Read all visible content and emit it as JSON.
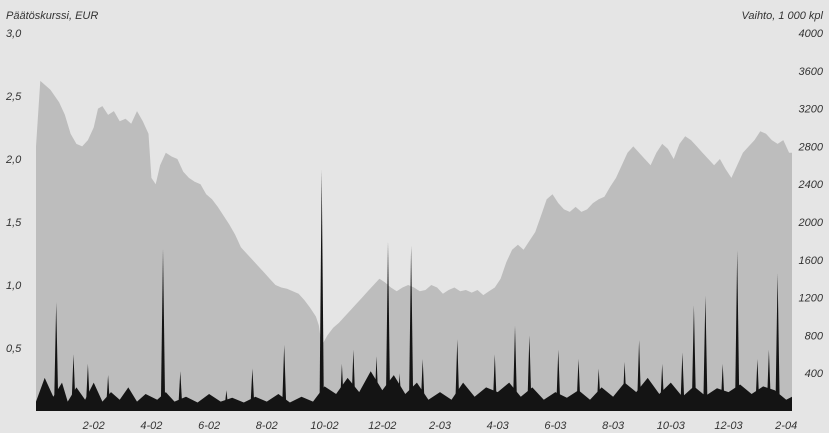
{
  "chart_data": {
    "type": "area",
    "ylabel_left": "Päätöskurssi, EUR",
    "ylabel_right": "Vaihto, 1 000 kpl",
    "left_axis": {
      "min": 0,
      "max": 3.0,
      "ticks": [
        "0,5",
        "1,0",
        "1,5",
        "2,0",
        "2,5",
        "3,0"
      ],
      "tick_values": [
        0.5,
        1.0,
        1.5,
        2.0,
        2.5,
        3.0
      ]
    },
    "right_axis": {
      "min": 0,
      "max": 4000,
      "ticks": [
        "400",
        "800",
        "1200",
        "1600",
        "2000",
        "2400",
        "2800",
        "3200",
        "3600",
        "4000"
      ],
      "tick_values": [
        400,
        800,
        1200,
        1600,
        2000,
        2400,
        2800,
        3200,
        3600,
        4000
      ]
    },
    "x_ticks": [
      "2-02",
      "4-02",
      "6-02",
      "8-02",
      "10-02",
      "12-02",
      "2-03",
      "4-03",
      "6-03",
      "8-03",
      "10-03",
      "12-03",
      "2-04"
    ],
    "x_tick_months": [
      2,
      4,
      6,
      8,
      10,
      12,
      14,
      16,
      18,
      20,
      22,
      24,
      26
    ],
    "x_range_months": [
      0.0,
      26.2
    ],
    "grid": false,
    "colors": {
      "price_area": "#bdbdbd",
      "volume_area": "#141414",
      "background": "#e5e5e5",
      "text": "#333333"
    },
    "series": [
      {
        "name": "Päätöskurssi, EUR",
        "axis": "left",
        "kind": "area",
        "points": [
          [
            0.0,
            2.1
          ],
          [
            0.15,
            2.62
          ],
          [
            0.5,
            2.55
          ],
          [
            0.8,
            2.45
          ],
          [
            1.0,
            2.35
          ],
          [
            1.2,
            2.2
          ],
          [
            1.4,
            2.12
          ],
          [
            1.6,
            2.1
          ],
          [
            1.8,
            2.15
          ],
          [
            2.0,
            2.25
          ],
          [
            2.15,
            2.4
          ],
          [
            2.3,
            2.42
          ],
          [
            2.5,
            2.35
          ],
          [
            2.7,
            2.38
          ],
          [
            2.9,
            2.3
          ],
          [
            3.1,
            2.32
          ],
          [
            3.3,
            2.28
          ],
          [
            3.5,
            2.38
          ],
          [
            3.7,
            2.3
          ],
          [
            3.9,
            2.2
          ],
          [
            4.0,
            1.85
          ],
          [
            4.15,
            1.8
          ],
          [
            4.3,
            1.95
          ],
          [
            4.5,
            2.05
          ],
          [
            4.7,
            2.02
          ],
          [
            4.9,
            2.0
          ],
          [
            5.1,
            1.9
          ],
          [
            5.3,
            1.85
          ],
          [
            5.5,
            1.82
          ],
          [
            5.7,
            1.8
          ],
          [
            5.9,
            1.72
          ],
          [
            6.1,
            1.68
          ],
          [
            6.3,
            1.62
          ],
          [
            6.5,
            1.55
          ],
          [
            6.7,
            1.48
          ],
          [
            6.9,
            1.4
          ],
          [
            7.1,
            1.3
          ],
          [
            7.3,
            1.25
          ],
          [
            7.5,
            1.2
          ],
          [
            7.7,
            1.15
          ],
          [
            7.9,
            1.1
          ],
          [
            8.1,
            1.05
          ],
          [
            8.3,
            1.0
          ],
          [
            8.5,
            0.98
          ],
          [
            8.7,
            0.97
          ],
          [
            8.9,
            0.95
          ],
          [
            9.1,
            0.93
          ],
          [
            9.3,
            0.88
          ],
          [
            9.5,
            0.82
          ],
          [
            9.7,
            0.75
          ],
          [
            9.8,
            0.68
          ],
          [
            9.9,
            0.52
          ],
          [
            10.1,
            0.6
          ],
          [
            10.3,
            0.66
          ],
          [
            10.5,
            0.7
          ],
          [
            10.7,
            0.75
          ],
          [
            10.9,
            0.8
          ],
          [
            11.1,
            0.85
          ],
          [
            11.3,
            0.9
          ],
          [
            11.5,
            0.95
          ],
          [
            11.7,
            1.0
          ],
          [
            11.9,
            1.05
          ],
          [
            12.1,
            1.02
          ],
          [
            12.3,
            0.98
          ],
          [
            12.5,
            0.95
          ],
          [
            12.7,
            0.98
          ],
          [
            12.9,
            1.0
          ],
          [
            13.1,
            0.98
          ],
          [
            13.3,
            0.95
          ],
          [
            13.5,
            0.96
          ],
          [
            13.7,
            1.0
          ],
          [
            13.9,
            0.98
          ],
          [
            14.1,
            0.93
          ],
          [
            14.3,
            0.96
          ],
          [
            14.5,
            0.98
          ],
          [
            14.7,
            0.95
          ],
          [
            14.9,
            0.96
          ],
          [
            15.1,
            0.94
          ],
          [
            15.3,
            0.96
          ],
          [
            15.5,
            0.92
          ],
          [
            15.7,
            0.95
          ],
          [
            15.9,
            0.98
          ],
          [
            16.1,
            1.05
          ],
          [
            16.3,
            1.18
          ],
          [
            16.5,
            1.28
          ],
          [
            16.7,
            1.32
          ],
          [
            16.9,
            1.28
          ],
          [
            17.1,
            1.35
          ],
          [
            17.3,
            1.42
          ],
          [
            17.5,
            1.55
          ],
          [
            17.7,
            1.68
          ],
          [
            17.9,
            1.72
          ],
          [
            18.1,
            1.65
          ],
          [
            18.3,
            1.6
          ],
          [
            18.5,
            1.58
          ],
          [
            18.7,
            1.62
          ],
          [
            18.9,
            1.58
          ],
          [
            19.1,
            1.6
          ],
          [
            19.3,
            1.65
          ],
          [
            19.5,
            1.68
          ],
          [
            19.7,
            1.7
          ],
          [
            19.9,
            1.78
          ],
          [
            20.1,
            1.85
          ],
          [
            20.3,
            1.95
          ],
          [
            20.5,
            2.05
          ],
          [
            20.7,
            2.1
          ],
          [
            20.9,
            2.05
          ],
          [
            21.1,
            2.0
          ],
          [
            21.3,
            1.95
          ],
          [
            21.5,
            2.05
          ],
          [
            21.7,
            2.12
          ],
          [
            21.9,
            2.08
          ],
          [
            22.1,
            2.0
          ],
          [
            22.3,
            2.12
          ],
          [
            22.5,
            2.18
          ],
          [
            22.7,
            2.15
          ],
          [
            22.9,
            2.1
          ],
          [
            23.1,
            2.05
          ],
          [
            23.3,
            2.0
          ],
          [
            23.5,
            1.95
          ],
          [
            23.7,
            2.0
          ],
          [
            23.9,
            1.92
          ],
          [
            24.1,
            1.85
          ],
          [
            24.3,
            1.95
          ],
          [
            24.5,
            2.05
          ],
          [
            24.7,
            2.1
          ],
          [
            24.9,
            2.15
          ],
          [
            25.1,
            2.22
          ],
          [
            25.3,
            2.2
          ],
          [
            25.5,
            2.15
          ],
          [
            25.7,
            2.12
          ],
          [
            25.9,
            2.15
          ],
          [
            26.1,
            2.05
          ],
          [
            26.2,
            2.05
          ]
        ]
      },
      {
        "name": "Vaihto, 1 000 kpl",
        "axis": "right",
        "kind": "area",
        "baseline_points": [
          [
            0.0,
            100
          ],
          [
            0.3,
            350
          ],
          [
            0.6,
            150
          ],
          [
            0.9,
            300
          ],
          [
            1.1,
            100
          ],
          [
            1.4,
            250
          ],
          [
            1.7,
            120
          ],
          [
            2.0,
            300
          ],
          [
            2.3,
            100
          ],
          [
            2.6,
            200
          ],
          [
            2.9,
            120
          ],
          [
            3.2,
            250
          ],
          [
            3.5,
            100
          ],
          [
            3.8,
            180
          ],
          [
            4.2,
            120
          ],
          [
            4.5,
            200
          ],
          [
            4.8,
            100
          ],
          [
            5.2,
            150
          ],
          [
            5.6,
            90
          ],
          [
            6.0,
            180
          ],
          [
            6.4,
            100
          ],
          [
            6.8,
            140
          ],
          [
            7.2,
            90
          ],
          [
            7.6,
            150
          ],
          [
            8.0,
            100
          ],
          [
            8.4,
            180
          ],
          [
            8.8,
            90
          ],
          [
            9.2,
            150
          ],
          [
            9.6,
            100
          ],
          [
            10.0,
            260
          ],
          [
            10.4,
            180
          ],
          [
            10.8,
            350
          ],
          [
            11.2,
            200
          ],
          [
            11.6,
            420
          ],
          [
            12.0,
            220
          ],
          [
            12.4,
            380
          ],
          [
            12.8,
            180
          ],
          [
            13.2,
            300
          ],
          [
            13.6,
            120
          ],
          [
            14.0,
            200
          ],
          [
            14.4,
            120
          ],
          [
            14.8,
            300
          ],
          [
            15.2,
            150
          ],
          [
            15.6,
            250
          ],
          [
            16.0,
            200
          ],
          [
            16.4,
            300
          ],
          [
            16.8,
            150
          ],
          [
            17.2,
            250
          ],
          [
            17.6,
            120
          ],
          [
            18.0,
            200
          ],
          [
            18.4,
            140
          ],
          [
            18.8,
            220
          ],
          [
            19.2,
            120
          ],
          [
            19.6,
            250
          ],
          [
            20.0,
            150
          ],
          [
            20.4,
            300
          ],
          [
            20.8,
            200
          ],
          [
            21.2,
            350
          ],
          [
            21.6,
            180
          ],
          [
            22.0,
            300
          ],
          [
            22.4,
            150
          ],
          [
            22.8,
            260
          ],
          [
            23.2,
            160
          ],
          [
            23.6,
            240
          ],
          [
            24.0,
            200
          ],
          [
            24.4,
            280
          ],
          [
            24.8,
            180
          ],
          [
            25.2,
            260
          ],
          [
            25.6,
            220
          ],
          [
            26.0,
            120
          ],
          [
            26.2,
            150
          ]
        ],
        "spikes": [
          [
            0.7,
            1150
          ],
          [
            1.3,
            600
          ],
          [
            1.8,
            500
          ],
          [
            2.5,
            380
          ],
          [
            4.4,
            1720
          ],
          [
            5.0,
            420
          ],
          [
            6.6,
            220
          ],
          [
            7.5,
            450
          ],
          [
            8.6,
            700
          ],
          [
            9.9,
            2550
          ],
          [
            10.6,
            500
          ],
          [
            11.0,
            650
          ],
          [
            11.8,
            580
          ],
          [
            12.2,
            1790
          ],
          [
            12.6,
            400
          ],
          [
            13.0,
            1750
          ],
          [
            13.4,
            550
          ],
          [
            14.6,
            760
          ],
          [
            15.9,
            600
          ],
          [
            16.6,
            900
          ],
          [
            17.1,
            800
          ],
          [
            18.1,
            650
          ],
          [
            18.8,
            550
          ],
          [
            19.5,
            450
          ],
          [
            20.4,
            520
          ],
          [
            20.9,
            750
          ],
          [
            21.7,
            500
          ],
          [
            22.4,
            620
          ],
          [
            22.8,
            1120
          ],
          [
            23.2,
            1220
          ],
          [
            23.8,
            500
          ],
          [
            24.3,
            1700
          ],
          [
            25.0,
            550
          ],
          [
            25.4,
            650
          ],
          [
            25.7,
            1460
          ]
        ]
      }
    ]
  }
}
